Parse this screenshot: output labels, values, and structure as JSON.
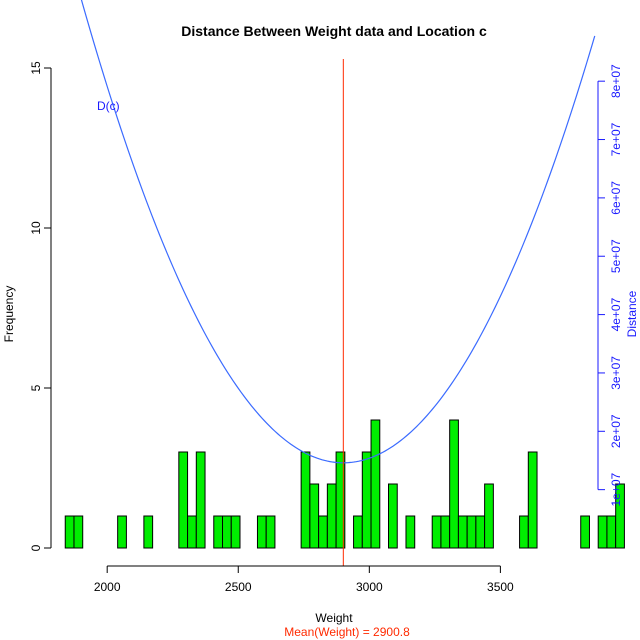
{
  "chart_data": {
    "type": "bar",
    "title": "Distance Between Weight data and Location c",
    "xlabel": "Weight",
    "ylabel": "Frequency",
    "y2label": "Distance",
    "mean_label": "Mean(Weight) = 2900.8",
    "curve_label": "D(c)",
    "xlim": [
      1820,
      3880
    ],
    "ylim": [
      0,
      15.5
    ],
    "y2lim": [
      0,
      85000000
    ],
    "xticks": [
      2000,
      2500,
      3000,
      3500
    ],
    "yticks": [
      0,
      5,
      10,
      15
    ],
    "y2ticks": [
      10000000,
      20000000,
      30000000,
      40000000,
      50000000,
      60000000,
      70000000,
      80000000
    ],
    "y2tick_labels": [
      "1e+07",
      "2e+07",
      "3e+07",
      "4e+07",
      "5e+07",
      "6e+07",
      "7e+07",
      "8e+07"
    ],
    "bin_start": 1840,
    "bin_width": 33.33,
    "counts": [
      1,
      1,
      0,
      0,
      0,
      0,
      1,
      0,
      0,
      1,
      0,
      0,
      0,
      3,
      1,
      3,
      0,
      1,
      1,
      1,
      0,
      0,
      1,
      1,
      0,
      0,
      0,
      3,
      2,
      1,
      2,
      3,
      0,
      1,
      3,
      4,
      0,
      2,
      0,
      1,
      0,
      0,
      1,
      1,
      4,
      1,
      1,
      1,
      2,
      0,
      0,
      0,
      1,
      3,
      0,
      0,
      0,
      0,
      0,
      1,
      0,
      1,
      1,
      2,
      0,
      0,
      2
    ],
    "mean": 2900.8,
    "curve": {
      "x_range": [
        1840,
        3860
      ],
      "min_distance": 14600000,
      "coef": 79.5
    },
    "colors": {
      "bars": "#00ee00",
      "bar_border": "#000000",
      "curve": "#3b6bff",
      "mean_line": "#ff2a00",
      "y2_axis": "#1a1aff"
    }
  }
}
